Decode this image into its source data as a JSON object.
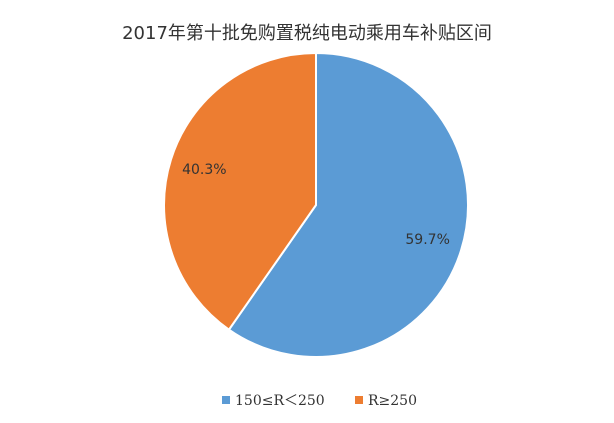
{
  "chart_data": {
    "type": "pie",
    "title": "2017年第十批免购置税纯电动乘用车补贴区间",
    "categories": [
      "150≤R＜250",
      "R≥250"
    ],
    "values": [
      59.7,
      40.3
    ],
    "value_labels": [
      "59.7%",
      "40.3%"
    ],
    "colors": [
      "#5b9bd5",
      "#ed7d31"
    ]
  }
}
